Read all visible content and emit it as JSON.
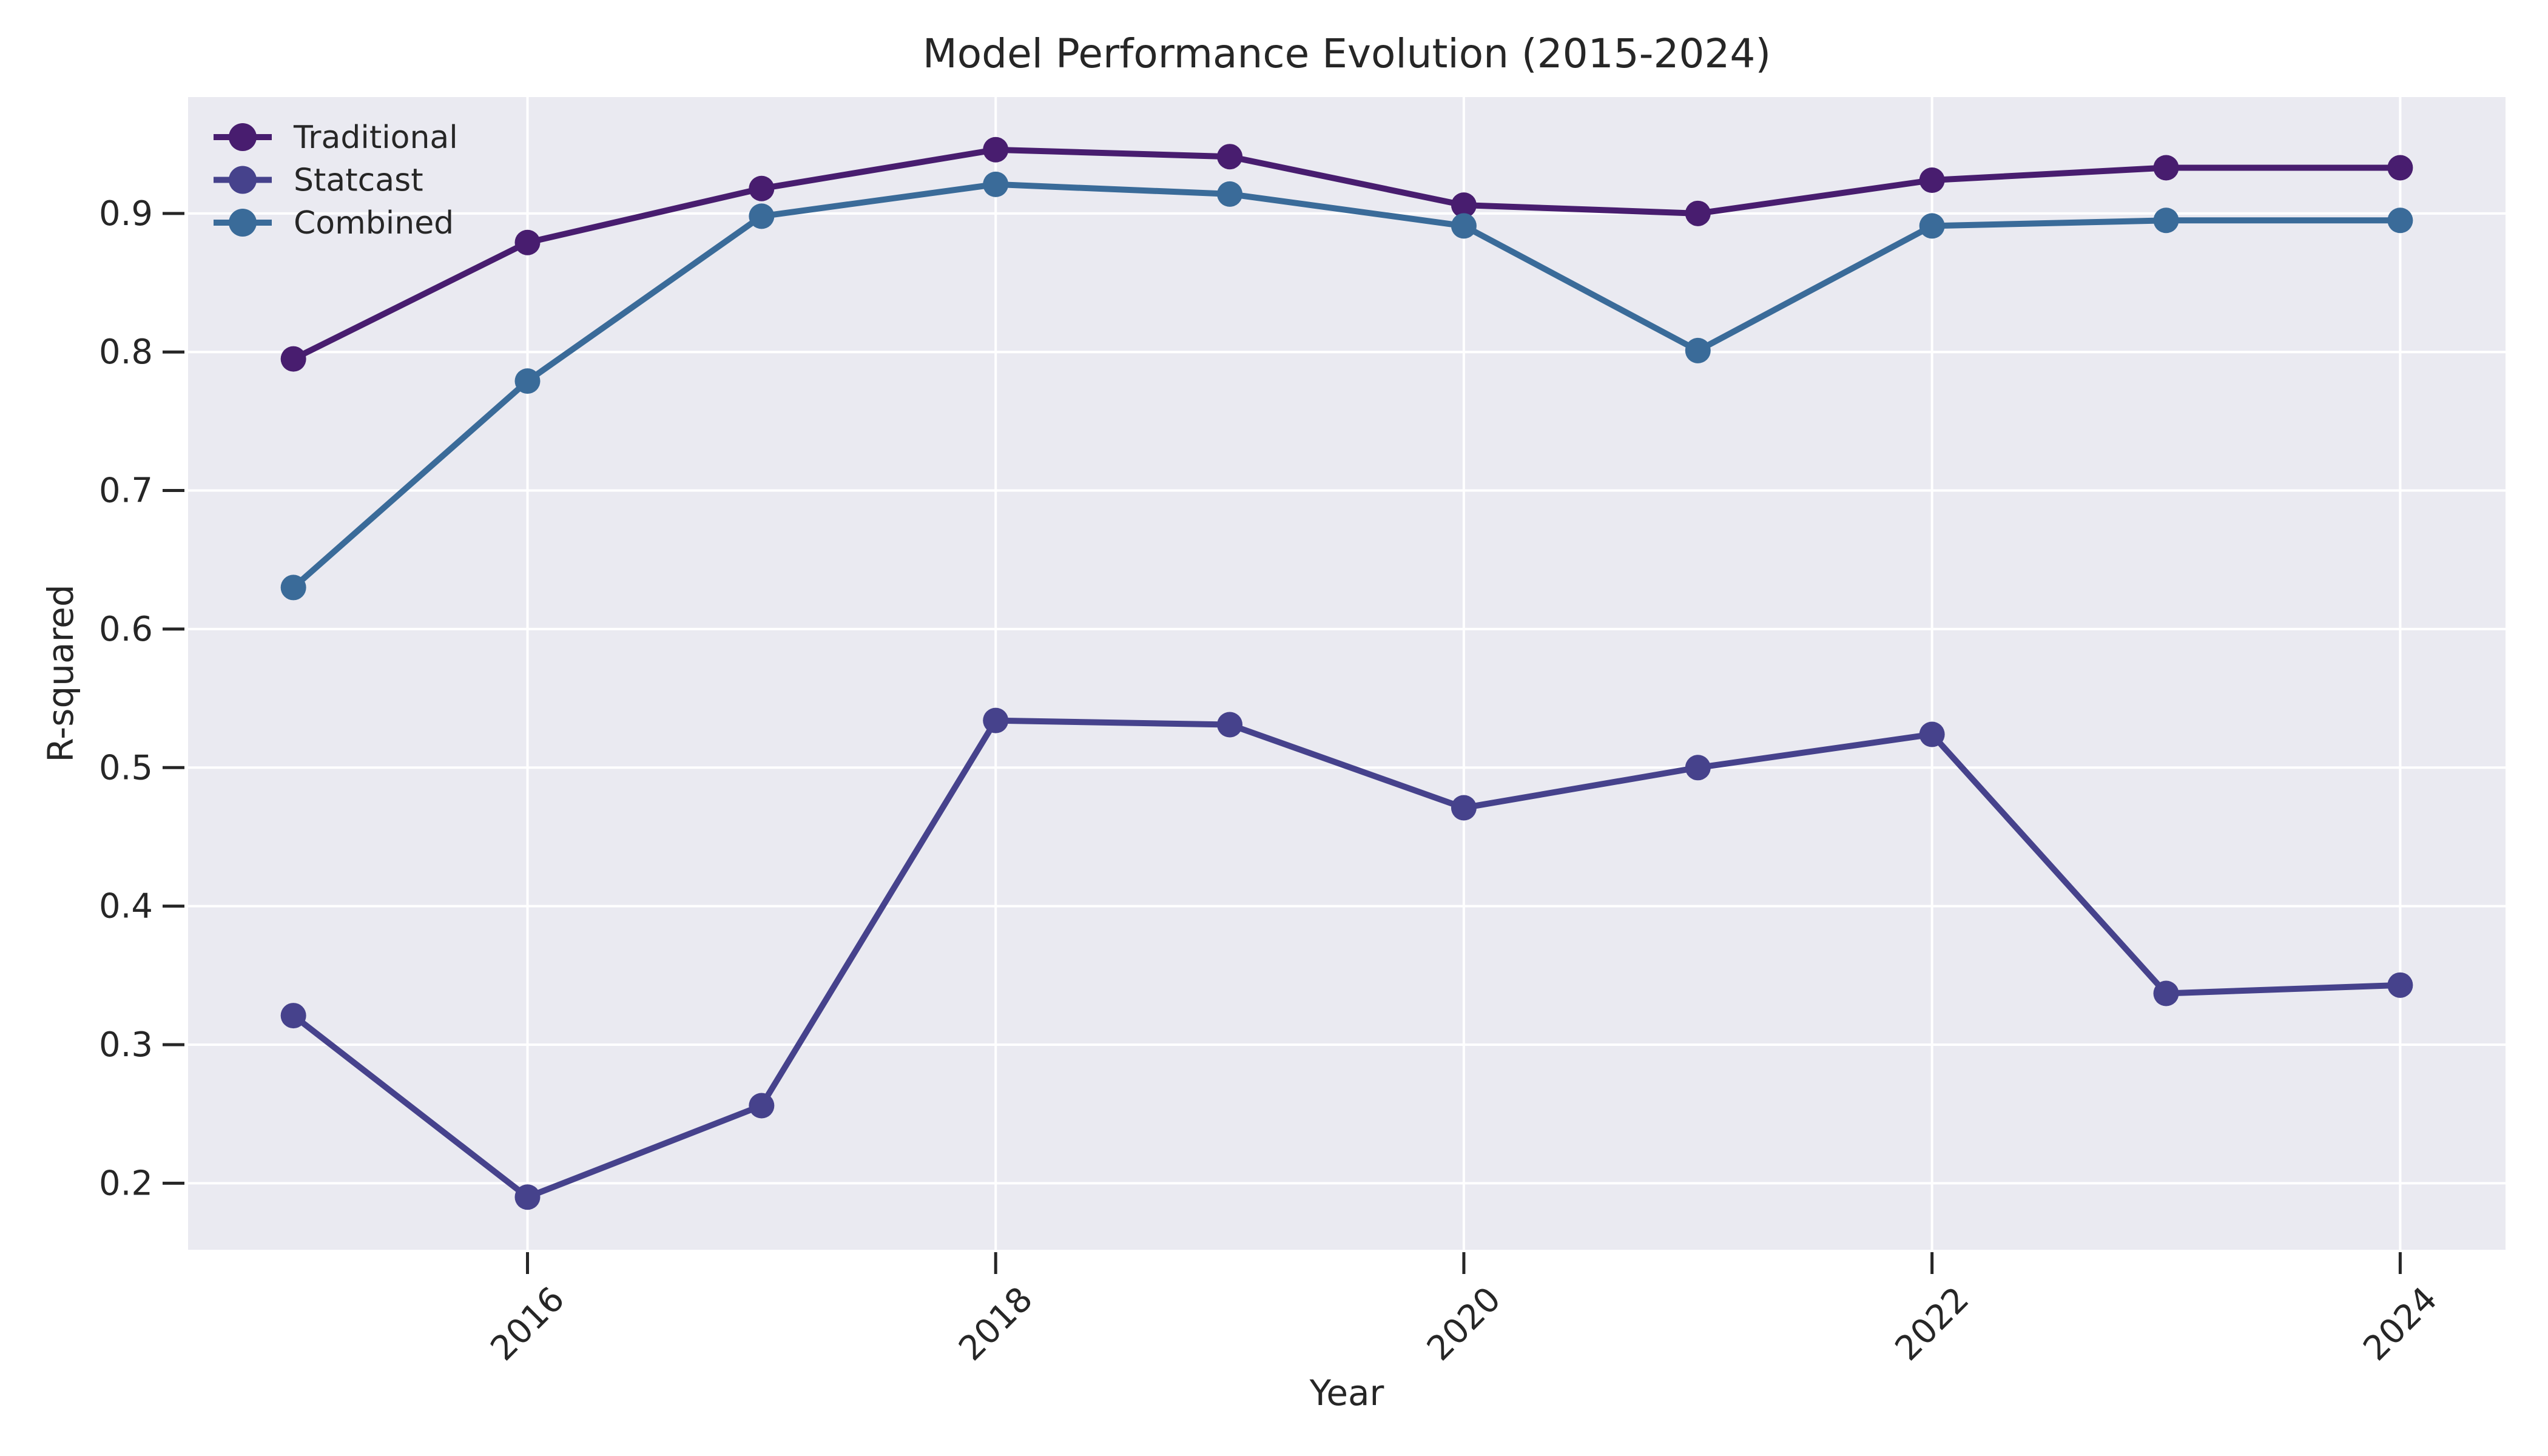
{
  "figure": {
    "title": "Model Performance Evolution (2015-2024)",
    "xlabel": "Year",
    "ylabel": "R-squared"
  },
  "legend": {
    "position": "upper-left",
    "items": [
      {
        "label": "Traditional",
        "color": "#481D6F"
      },
      {
        "label": "Statcast",
        "color": "#46428C"
      },
      {
        "label": "Combined",
        "color": "#3A6B99"
      }
    ]
  },
  "style": {
    "page_bg": "#FFFFFF",
    "plot_bg": "#EAEAF1",
    "grid_color": "#FFFFFF",
    "text_color": "#262626",
    "line_width": 10,
    "marker_radius": 21
  },
  "chart_data": {
    "type": "line",
    "title": "Model Performance Evolution (2015-2024)",
    "xlabel": "Year",
    "ylabel": "R-squared",
    "x": [
      2015,
      2016,
      2017,
      2018,
      2019,
      2020,
      2021,
      2022,
      2023,
      2024
    ],
    "series": [
      {
        "name": "Traditional",
        "color": "#481D6F",
        "values": [
          0.795,
          0.879,
          0.918,
          0.946,
          0.941,
          0.906,
          0.9,
          0.924,
          0.933,
          0.933
        ]
      },
      {
        "name": "Statcast",
        "color": "#46428C",
        "values": [
          0.321,
          0.19,
          0.256,
          0.534,
          0.531,
          0.471,
          0.5,
          0.524,
          0.337,
          0.343
        ]
      },
      {
        "name": "Combined",
        "color": "#3A6B99",
        "values": [
          0.63,
          0.779,
          0.898,
          0.921,
          0.914,
          0.891,
          0.801,
          0.891,
          0.895,
          0.895
        ]
      }
    ],
    "xlim": [
      2014.55,
      2024.45
    ],
    "ylim": [
      0.152,
      0.984
    ],
    "xticks": [
      2016,
      2018,
      2020,
      2022,
      2024
    ],
    "xtick_labels": [
      "2016",
      "2018",
      "2020",
      "2022",
      "2024"
    ],
    "xtick_rotation_deg": 45,
    "yticks": [
      0.2,
      0.3,
      0.4,
      0.5,
      0.6,
      0.7,
      0.8,
      0.9
    ],
    "ytick_labels": [
      "0.2",
      "0.3",
      "0.4",
      "0.5",
      "0.6",
      "0.7",
      "0.8",
      "0.9"
    ],
    "grid": true,
    "legend_position": "upper left"
  }
}
